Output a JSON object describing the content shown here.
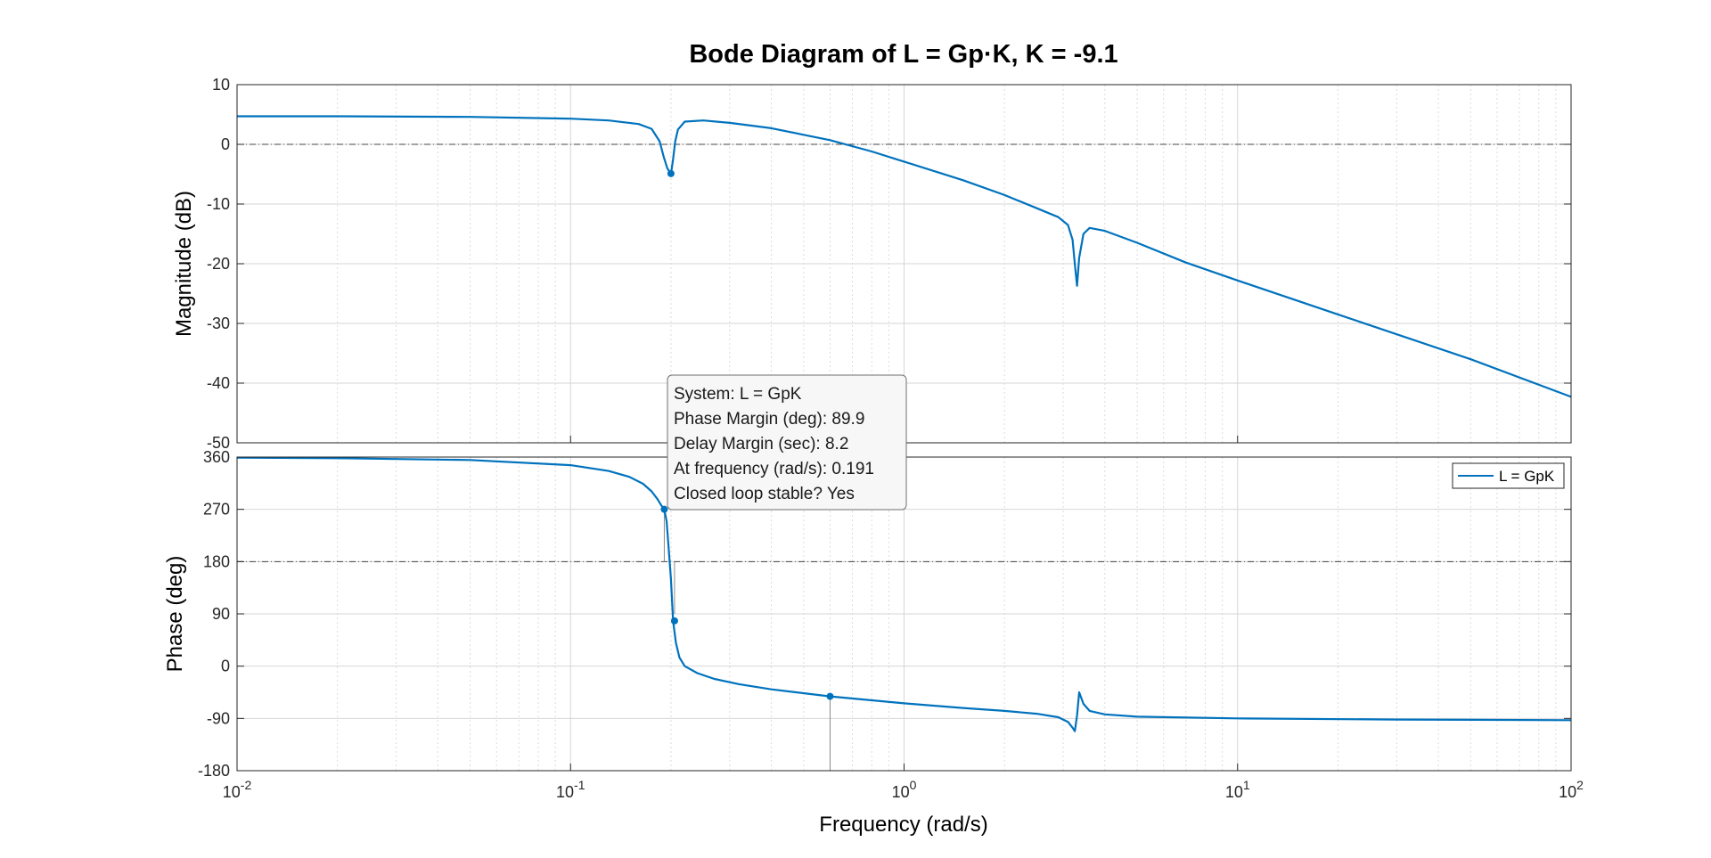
{
  "chart_data": {
    "type": "line",
    "title": "Bode Diagram of L = Gp·K, K = -9.1",
    "xlabel": "Frequency  (rad/s)",
    "x_scale": "log",
    "xlim": [
      0.01,
      100
    ],
    "x_ticks": [
      {
        "value": 0.01,
        "base": "10",
        "exp": "-2"
      },
      {
        "value": 0.1,
        "base": "10",
        "exp": "-1"
      },
      {
        "value": 1,
        "base": "10",
        "exp": "0"
      },
      {
        "value": 10,
        "base": "10",
        "exp": "1"
      },
      {
        "value": 100,
        "base": "10",
        "exp": "2"
      }
    ],
    "grid": true,
    "magnitude": {
      "ylabel": "Magnitude (dB)",
      "ylim": [
        -50,
        10
      ],
      "y_ticks": [
        10,
        0,
        -10,
        -20,
        -30,
        -40,
        -50
      ],
      "reference_line": 0,
      "series": [
        {
          "name": "L = GpK",
          "x": [
            0.01,
            0.02,
            0.05,
            0.1,
            0.13,
            0.16,
            0.175,
            0.185,
            0.19,
            0.195,
            0.2,
            0.203,
            0.206,
            0.21,
            0.22,
            0.25,
            0.3,
            0.4,
            0.5,
            0.6,
            0.8,
            1.0,
            1.5,
            2.0,
            2.5,
            2.9,
            3.1,
            3.2,
            3.25,
            3.3,
            3.35,
            3.45,
            3.6,
            4.0,
            5.0,
            7.0,
            10.0,
            20.0,
            50.0,
            100.0
          ],
          "y": [
            4.7,
            4.7,
            4.6,
            4.3,
            4.0,
            3.4,
            2.6,
            0.5,
            -2.0,
            -4.0,
            -5.0,
            -2.5,
            0.5,
            2.5,
            3.8,
            4.0,
            3.6,
            2.7,
            1.6,
            0.7,
            -1.2,
            -2.9,
            -6.0,
            -8.5,
            -10.7,
            -12.2,
            -13.5,
            -16.0,
            -20.0,
            -23.7,
            -19.0,
            -15.0,
            -14.0,
            -14.5,
            -16.5,
            -19.8,
            -22.8,
            -28.5,
            -36.0,
            -42.3
          ]
        }
      ],
      "markers": [
        {
          "x": 0.2,
          "y": -4.9
        }
      ]
    },
    "phase": {
      "ylabel": "Phase (deg)",
      "ylim": [
        -180,
        360
      ],
      "y_ticks": [
        360,
        270,
        180,
        90,
        0,
        -90,
        -180
      ],
      "reference_lines": [
        180,
        -180
      ],
      "series": [
        {
          "name": "L = GpK",
          "x": [
            0.01,
            0.02,
            0.05,
            0.1,
            0.13,
            0.15,
            0.165,
            0.175,
            0.182,
            0.187,
            0.191,
            0.194,
            0.197,
            0.2,
            0.203,
            0.207,
            0.212,
            0.22,
            0.24,
            0.27,
            0.32,
            0.4,
            0.6,
            1.0,
            1.5,
            2.0,
            2.5,
            2.9,
            3.1,
            3.2,
            3.25,
            3.3,
            3.35,
            3.45,
            3.6,
            4.0,
            5.0,
            10.0,
            30.0,
            100.0
          ],
          "y": [
            359,
            358,
            355,
            346,
            336,
            326,
            314,
            301,
            288,
            277,
            270,
            250,
            200,
            150,
            78,
            40,
            15,
            0,
            -12,
            -22,
            -31,
            -40,
            -52,
            -64,
            -72,
            -77,
            -82,
            -88,
            -96,
            -106,
            -112,
            -85,
            -45,
            -65,
            -77,
            -83,
            -87,
            -90,
            -92,
            -93
          ]
        }
      ],
      "markers": [
        {
          "x": 0.191,
          "y": 270
        },
        {
          "x": 0.205,
          "y": 78
        },
        {
          "x": 0.6,
          "y": -52
        }
      ],
      "drop_lines": [
        {
          "x": 0.191,
          "from": 270,
          "to": 180
        },
        {
          "x": 0.205,
          "from": 180,
          "to": 90
        },
        {
          "x": 0.6,
          "from": -52,
          "to": -180
        }
      ]
    },
    "legend": {
      "entries": [
        "L = GpK"
      ],
      "location": "top-right of phase plot"
    },
    "datatip": {
      "lines": [
        "System: L = GpK",
        "Phase Margin (deg): 89.9",
        "Delay Margin (sec): 8.2",
        "At frequency (rad/s): 0.191",
        "Closed loop stable? Yes"
      ]
    },
    "line_color": "#0072bd"
  }
}
